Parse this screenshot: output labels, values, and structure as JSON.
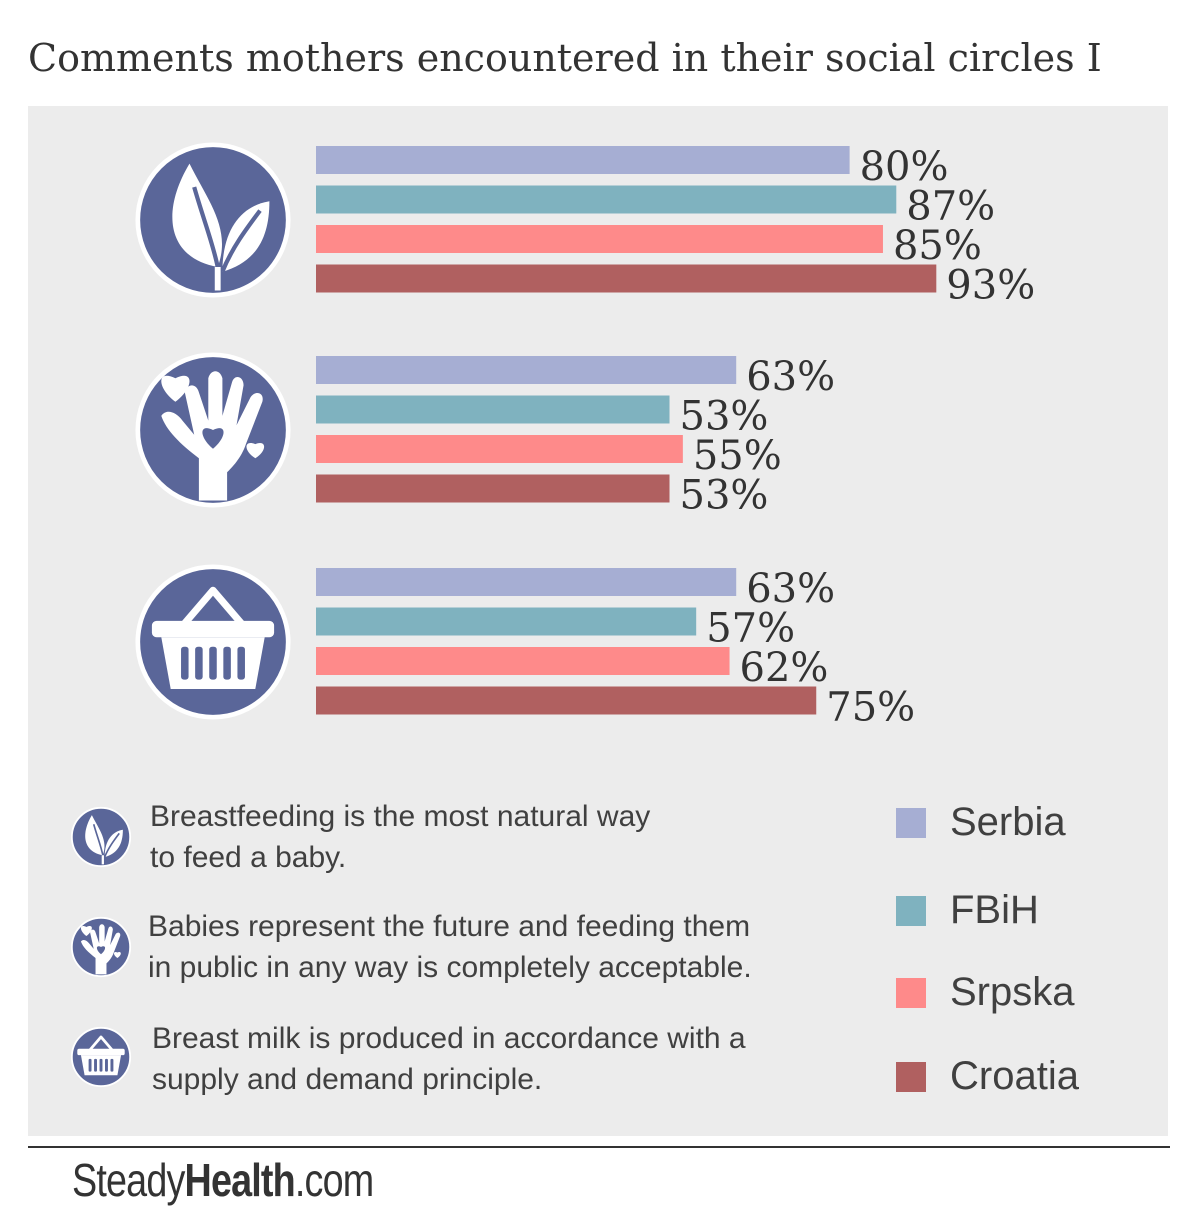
{
  "chart_data": {
    "type": "bar",
    "orientation": "horizontal",
    "title": "Comments mothers encountered in their social circles I",
    "categories": [
      "Breastfeeding is the most natural way to feed a baby.",
      "Babies represent the future and feeding them in public in any way is completely acceptable.",
      "Breast milk is produced in accordance with a supply and demand principle."
    ],
    "series": [
      {
        "name": "Serbia",
        "color": "#a6aed3",
        "values": [
          80,
          63,
          63
        ]
      },
      {
        "name": "FBiH",
        "color": "#7fb2bf",
        "values": [
          87,
          53,
          57
        ]
      },
      {
        "name": "Srpska",
        "color": "#fe8a8a",
        "values": [
          85,
          55,
          62
        ]
      },
      {
        "name": "Croatia",
        "color": "#b06060",
        "values": [
          93,
          53,
          75
        ]
      }
    ],
    "value_suffix": "%",
    "legend_position": "bottom-right"
  },
  "groups": [
    {
      "icon": "leaf-icon"
    },
    {
      "icon": "hand-heart-icon"
    },
    {
      "icon": "basket-icon"
    }
  ],
  "notes": [
    {
      "icon": "leaf-icon",
      "line1": "Breastfeeding is the most natural way",
      "line2": "to feed a baby."
    },
    {
      "icon": "hand-heart-icon",
      "line1": "Babies represent the future and feeding them",
      "line2": "in public in any way is completely acceptable."
    },
    {
      "icon": "basket-icon",
      "line1": "Breast milk is produced in accordance with a",
      "line2": "supply and demand principle."
    }
  ],
  "legend": [
    {
      "label": "Serbia",
      "color": "#a6aed3"
    },
    {
      "label": "FBiH",
      "color": "#7fb2bf"
    },
    {
      "label": "Srpska",
      "color": "#fe8a8a"
    },
    {
      "label": "Croatia",
      "color": "#b06060"
    }
  ],
  "colors": {
    "icon_circle": "#5a6699",
    "panel": "#ececec"
  },
  "brand": {
    "part1": "Steady",
    "part2": "Health",
    "part3": ".com"
  }
}
